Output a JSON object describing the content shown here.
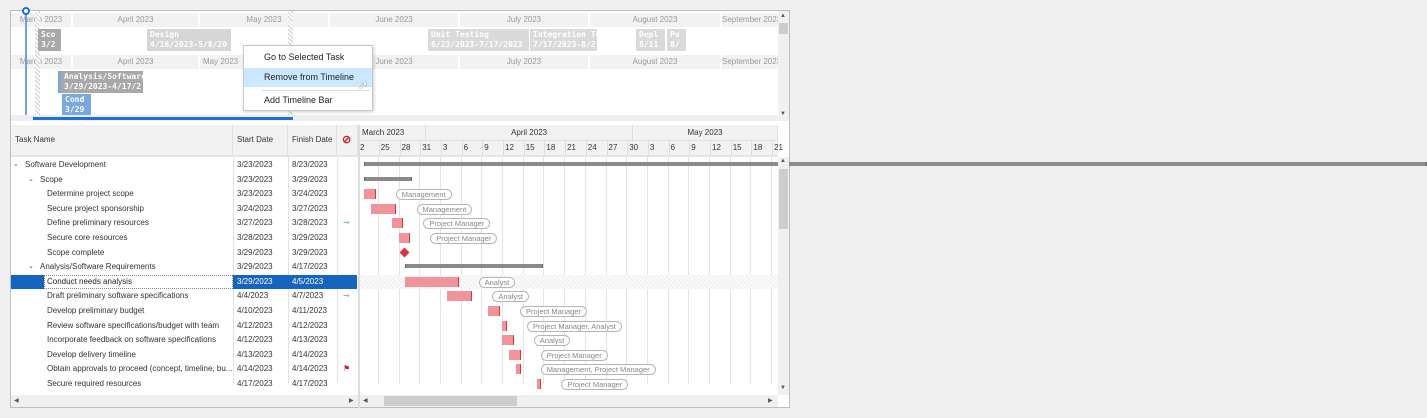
{
  "timeline": {
    "months": [
      "March 2023",
      "April 2023",
      "May 2023",
      "June 2023",
      "July 2023",
      "August 2023",
      "September 2023"
    ],
    "bars_top": [
      {
        "title": "Sco",
        "dates": "3/2",
        "color": "#a8a8a8"
      },
      {
        "title": "Design",
        "dates": "4/18/2023-5/8/20",
        "color": "#d6d6d6"
      },
      {
        "title": "Unit Testing",
        "dates": "6/23/2023-7/17/2023",
        "color": "#dadada"
      },
      {
        "title": "Integration Tes",
        "dates": "7/17/2023-8/2",
        "color": "#dadada"
      },
      {
        "title": "Depl",
        "dates": "8/11",
        "color": "#dadada"
      },
      {
        "title": "Po",
        "dates": "8/",
        "color": "#dadada"
      }
    ],
    "bars_bottom": [
      {
        "title": "Analysis/Software",
        "dates": "3/29/2023-4/17/2",
        "color": "#a8a8a8"
      },
      {
        "title": "Cond",
        "dates": "3/29",
        "color": "#7aa7e0"
      }
    ]
  },
  "context_menu": {
    "items": [
      "Go to Selected Task",
      "Remove from Timeline",
      "Add Timeline Bar"
    ],
    "highlighted": 1
  },
  "grid": {
    "headers": {
      "task": "Task Name",
      "start": "Start Date",
      "finish": "Finish Date",
      "indicator_icon": "no-entry-icon"
    },
    "rows": [
      {
        "name": "Software Development",
        "start": "3/23/2023",
        "finish": "8/23/2023",
        "level": 0,
        "summary": true
      },
      {
        "name": "Scope",
        "start": "3/23/2023",
        "finish": "3/29/2023",
        "level": 1,
        "summary": true
      },
      {
        "name": "Determine project scope",
        "start": "3/23/2023",
        "finish": "3/24/2023",
        "level": 2,
        "resource": "Management"
      },
      {
        "name": "Secure project sponsorship",
        "start": "3/24/2023",
        "finish": "3/27/2023",
        "level": 2,
        "resource": "Management"
      },
      {
        "name": "Define preliminary resources",
        "start": "3/27/2023",
        "finish": "3/28/2023",
        "level": 2,
        "resource": "Project Manager",
        "indicator": "constraint-icon"
      },
      {
        "name": "Secure core resources",
        "start": "3/28/2023",
        "finish": "3/29/2023",
        "level": 2,
        "resource": "Project Manager"
      },
      {
        "name": "Scope complete",
        "start": "3/29/2023",
        "finish": "3/29/2023",
        "level": 2,
        "milestone": true
      },
      {
        "name": "Analysis/Software Requirements",
        "start": "3/29/2023",
        "finish": "4/17/2023",
        "level": 1,
        "summary": true
      },
      {
        "name": "Conduct needs analysis",
        "start": "3/29/2023",
        "finish": "4/5/2023",
        "level": 2,
        "resource": "Analyst",
        "selected": true
      },
      {
        "name": "Draft preliminary software specifications",
        "start": "4/4/2023",
        "finish": "4/7/2023",
        "level": 2,
        "resource": "Analyst",
        "indicator": "constraint-icon"
      },
      {
        "name": "Develop preliminary budget",
        "start": "4/10/2023",
        "finish": "4/11/2023",
        "level": 2,
        "resource": "Project Manager"
      },
      {
        "name": "Review software specifications/budget with team",
        "start": "4/12/2023",
        "finish": "4/12/2023",
        "level": 2,
        "resource": "Project Manager, Analyst"
      },
      {
        "name": "Incorporate feedback on software specifications",
        "start": "4/12/2023",
        "finish": "4/13/2023",
        "level": 2,
        "resource": "Analyst"
      },
      {
        "name": "Develop delivery timeline",
        "start": "4/13/2023",
        "finish": "4/14/2023",
        "level": 2,
        "resource": "Project Manager"
      },
      {
        "name": "Obtain approvals to proceed (concept, timeline, bu...",
        "start": "4/14/2023",
        "finish": "4/14/2023",
        "level": 2,
        "resource": "Management, Project Manager",
        "indicator": "flag-icon"
      },
      {
        "name": "Secure required resources",
        "start": "4/17/2023",
        "finish": "4/17/2023",
        "level": 2,
        "resource": "Project Manager"
      }
    ]
  },
  "chart": {
    "months": [
      "March 2023",
      "April 2023",
      "May 2023"
    ],
    "days": [
      "2",
      "25",
      "28",
      "31",
      "3",
      "6",
      "9",
      "12",
      "15",
      "18",
      "21",
      "24",
      "27",
      "30",
      "3",
      "6",
      "9",
      "12",
      "15",
      "18",
      "21"
    ],
    "task_color": "#f0939b",
    "summary_color": "#8a8a8a",
    "link_color": "#e0313f"
  },
  "colors": {
    "selection": "#1565c0",
    "accent": "#1e6fd9"
  }
}
